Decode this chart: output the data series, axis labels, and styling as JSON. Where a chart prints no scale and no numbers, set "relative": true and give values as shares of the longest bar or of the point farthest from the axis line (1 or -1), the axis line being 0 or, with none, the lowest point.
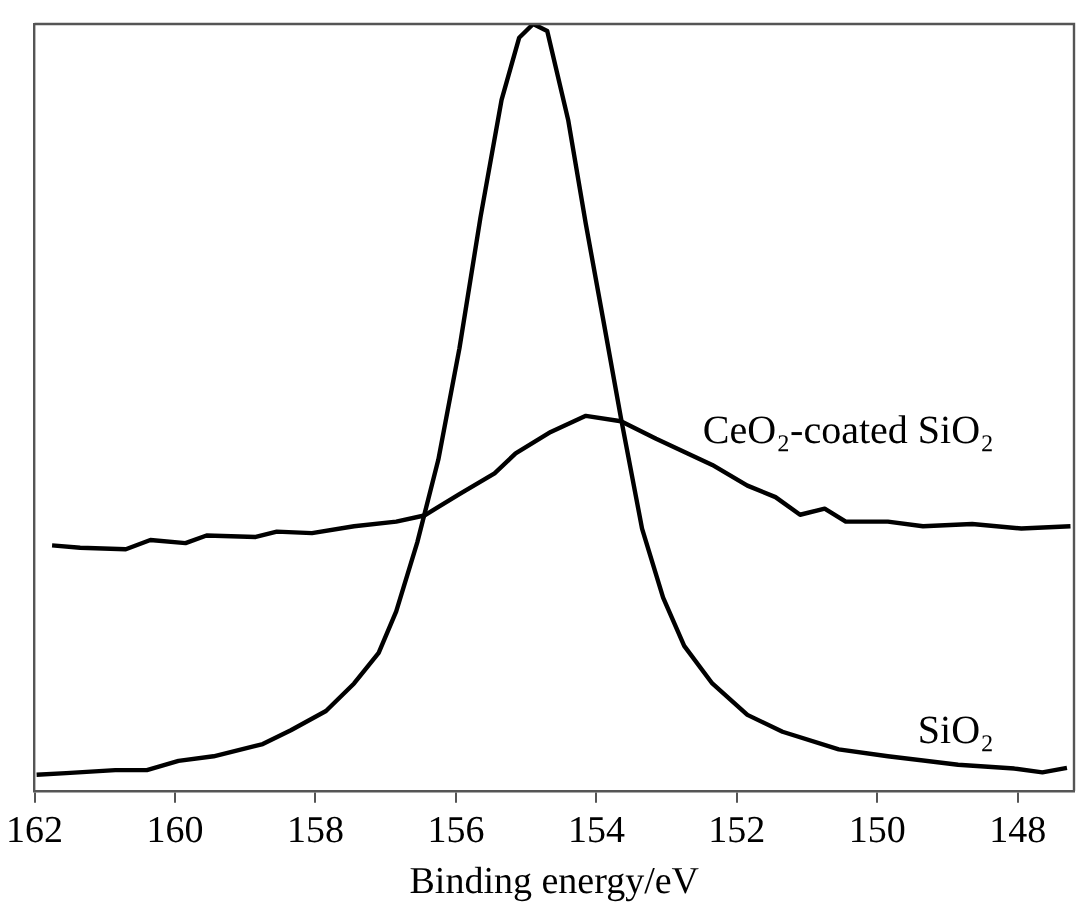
{
  "chart_data": {
    "type": "line",
    "xlabel": "Binding energy/eV",
    "relative": true,
    "xlim": [
      162,
      147.2
    ],
    "xticks": [
      162,
      160,
      158,
      156,
      154,
      152,
      150,
      148
    ],
    "marker": "none",
    "line_style": "solid",
    "legend": false,
    "grid": false,
    "series": [
      {
        "name": "SiO₂",
        "color": "#000000",
        "x": [
          161.97,
          161.55,
          160.85,
          160.4,
          159.95,
          159.45,
          158.75,
          158.35,
          157.85,
          157.45,
          157.1,
          156.85,
          156.55,
          156.25,
          155.95,
          155.65,
          155.35,
          155.1,
          154.9,
          154.7,
          154.4,
          154.15,
          153.9,
          153.65,
          153.35,
          153.05,
          152.75,
          152.35,
          151.85,
          151.35,
          150.55,
          149.85,
          148.85,
          148.05,
          147.65,
          147.3
        ],
        "values": [
          0.021,
          0.023,
          0.027,
          0.027,
          0.039,
          0.045,
          0.061,
          0.079,
          0.104,
          0.14,
          0.18,
          0.234,
          0.324,
          0.432,
          0.577,
          0.748,
          0.901,
          0.982,
          1,
          0.991,
          0.874,
          0.739,
          0.613,
          0.486,
          0.342,
          0.252,
          0.189,
          0.14,
          0.099,
          0.077,
          0.054,
          0.045,
          0.034,
          0.029,
          0.024,
          0.03
        ]
      },
      {
        "name": "CeO₂-coated SiO₂",
        "color": "#000000",
        "x": [
          161.75,
          161.35,
          160.7,
          160.35,
          159.85,
          159.55,
          158.85,
          158.55,
          158.05,
          157.45,
          156.85,
          156.45,
          155.95,
          155.45,
          155.15,
          154.65,
          154.15,
          153.65,
          153.15,
          152.35,
          151.85,
          151.45,
          151.1,
          150.75,
          150.45,
          149.85,
          149.35,
          148.65,
          147.95,
          147.25
        ],
        "values": [
          0.32,
          0.317,
          0.315,
          0.327,
          0.323,
          0.333,
          0.331,
          0.338,
          0.336,
          0.345,
          0.351,
          0.359,
          0.387,
          0.414,
          0.44,
          0.468,
          0.489,
          0.482,
          0.459,
          0.425,
          0.398,
          0.383,
          0.36,
          0.368,
          0.351,
          0.351,
          0.345,
          0.348,
          0.342,
          0.345
        ]
      }
    ]
  }
}
